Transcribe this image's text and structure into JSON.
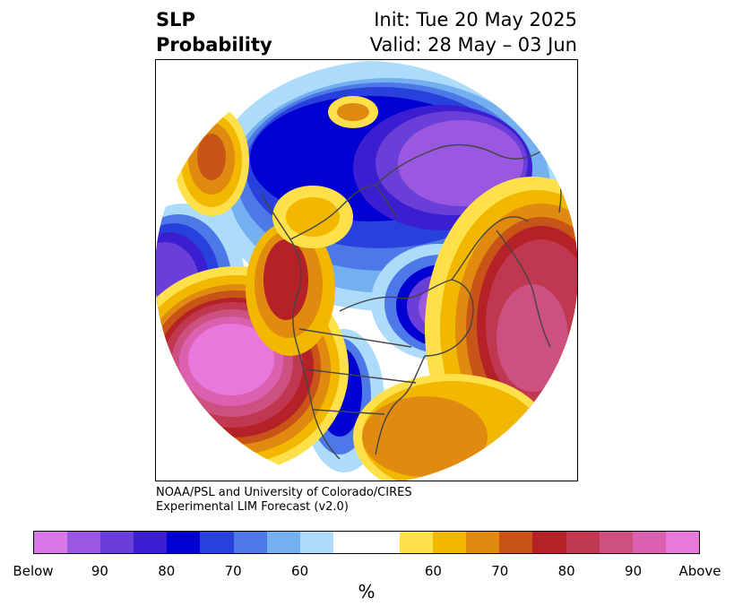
{
  "title": {
    "left_line1": "SLP",
    "left_line2": "Probability",
    "right_line1": "Init: Tue 20 May 2025",
    "right_line2": "Valid: 28 May – 03 Jun"
  },
  "credit": {
    "line1": "NOAA/PSL and University of Colorado/CIRES",
    "line2": "Experimental LIM Forecast (v2.0)"
  },
  "colorbar": {
    "unit": "%",
    "colors": [
      "#d878e8",
      "#9a58e0",
      "#6a3ed8",
      "#3a1ed0",
      "#0000d0",
      "#2840dc",
      "#4c78e8",
      "#74b0f0",
      "#acdcfa",
      "#ffffff",
      "#ffffff",
      "#fde04a",
      "#f2b800",
      "#e08a10",
      "#c85418",
      "#b42228",
      "#c03850",
      "#cc5080",
      "#dc60b0",
      "#e878dc"
    ],
    "tick_labels": [
      "Below",
      "90",
      "80",
      "70",
      "60",
      "60",
      "70",
      "80",
      "90",
      "Above"
    ],
    "tick_boundaries": [
      0,
      2,
      4,
      6,
      8,
      12,
      14,
      16,
      18,
      20
    ]
  },
  "map": {
    "projection": "north-polar-stereographic",
    "field": "sea-level pressure tercile probability",
    "below_color": "#0000d0",
    "above_color": "#b42228"
  }
}
